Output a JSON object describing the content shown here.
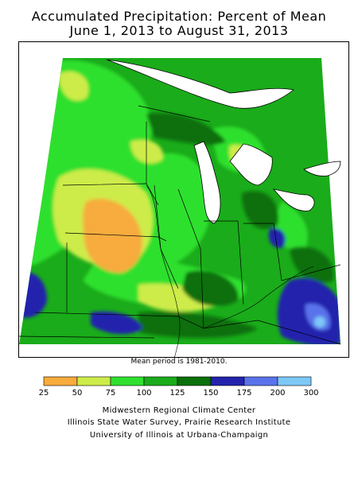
{
  "title_line1": "Accumulated Precipitation: Percent of Mean",
  "title_line2": "June 1, 2013 to August 31, 2013",
  "note": "Mean period is 1981-2010.",
  "legend": {
    "ranges": [
      {
        "from": 25,
        "to": 50,
        "color": "#f7ac3c"
      },
      {
        "from": 50,
        "to": 75,
        "color": "#cdec4a"
      },
      {
        "from": 75,
        "to": 100,
        "color": "#2fe02f"
      },
      {
        "from": 100,
        "to": 125,
        "color": "#1aac1a"
      },
      {
        "from": 125,
        "to": 150,
        "color": "#0a700a"
      },
      {
        "from": 150,
        "to": 175,
        "color": "#2323ad"
      },
      {
        "from": 175,
        "to": 200,
        "color": "#5a73ec"
      },
      {
        "from": 200,
        "to": 300,
        "color": "#7dc8f7"
      }
    ],
    "tick_labels": [
      "25",
      "50",
      "75",
      "100",
      "125",
      "150",
      "175",
      "200",
      "300"
    ]
  },
  "credits": [
    "Midwestern Regional Climate Center",
    "Illinois State Water Survey, Prairie Research Institute",
    "University of Illinois at Urbana-Champaign"
  ]
}
